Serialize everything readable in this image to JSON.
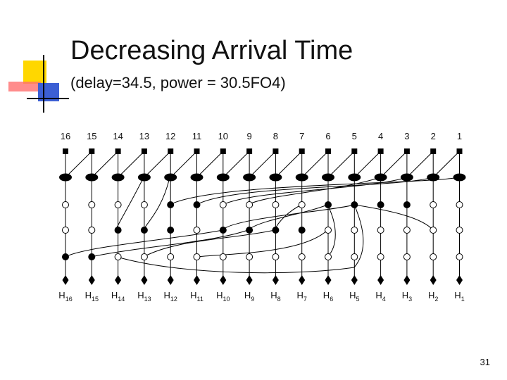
{
  "title": "Decreasing Arrival Time",
  "subtitle": "(delay=34.5, power = 30.5FO4)",
  "diagram": {
    "inputs": [
      "16",
      "15",
      "14",
      "13",
      "12",
      "11",
      "10",
      "9",
      "8",
      "7",
      "6",
      "5",
      "4",
      "3",
      "2",
      "1"
    ],
    "outputs": [
      {
        "base": "H",
        "sub": "16"
      },
      {
        "base": "H",
        "sub": "15"
      },
      {
        "base": "H",
        "sub": "14"
      },
      {
        "base": "H",
        "sub": "13"
      },
      {
        "base": "H",
        "sub": "12"
      },
      {
        "base": "H",
        "sub": "11"
      },
      {
        "base": "H",
        "sub": "10"
      },
      {
        "base": "H",
        "sub": "9"
      },
      {
        "base": "H",
        "sub": "8"
      },
      {
        "base": "H",
        "sub": "7"
      },
      {
        "base": "H",
        "sub": "6"
      },
      {
        "base": "H",
        "sub": "5"
      },
      {
        "base": "H",
        "sub": "4"
      },
      {
        "base": "H",
        "sub": "3"
      },
      {
        "base": "H",
        "sub": "2"
      },
      {
        "base": "H",
        "sub": "1"
      }
    ]
  },
  "page_number": "31"
}
